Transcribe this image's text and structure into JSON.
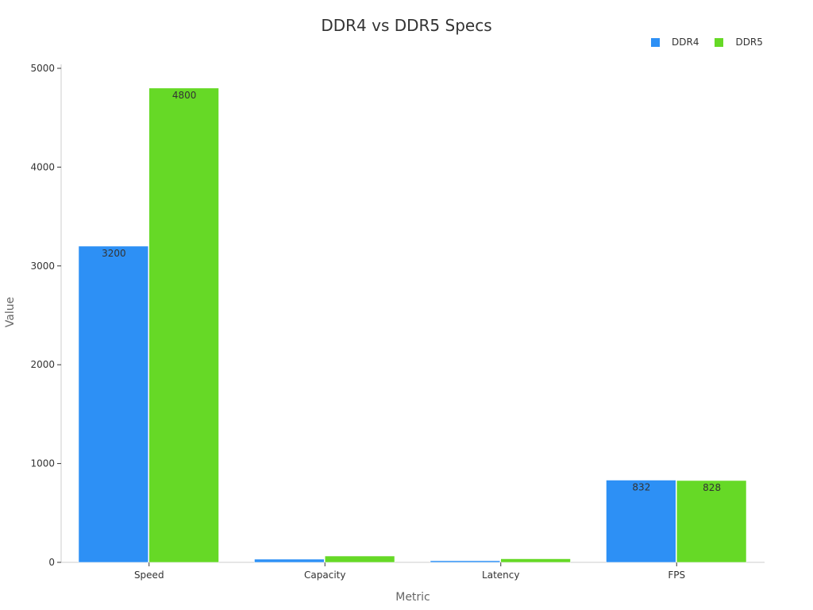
{
  "chart_data": {
    "type": "bar",
    "title": "DDR4 vs DDR5 Specs",
    "xlabel": "Metric",
    "ylabel": "Value",
    "categories": [
      "Speed",
      "Capacity",
      "Latency",
      "FPS"
    ],
    "series": [
      {
        "name": "DDR4",
        "color": "#2d90f5",
        "values": [
          3200,
          32,
          16,
          832
        ],
        "labels": [
          "3200",
          "",
          "",
          "832"
        ]
      },
      {
        "name": "DDR5",
        "color": "#66d926",
        "values": [
          4800,
          64,
          36,
          828
        ],
        "labels": [
          "4800",
          "",
          "",
          "828"
        ]
      }
    ],
    "ylim": [
      0,
      5000
    ],
    "yticks": [
      0,
      1000,
      2000,
      3000,
      4000,
      5000
    ],
    "legend_position": "top-right"
  }
}
